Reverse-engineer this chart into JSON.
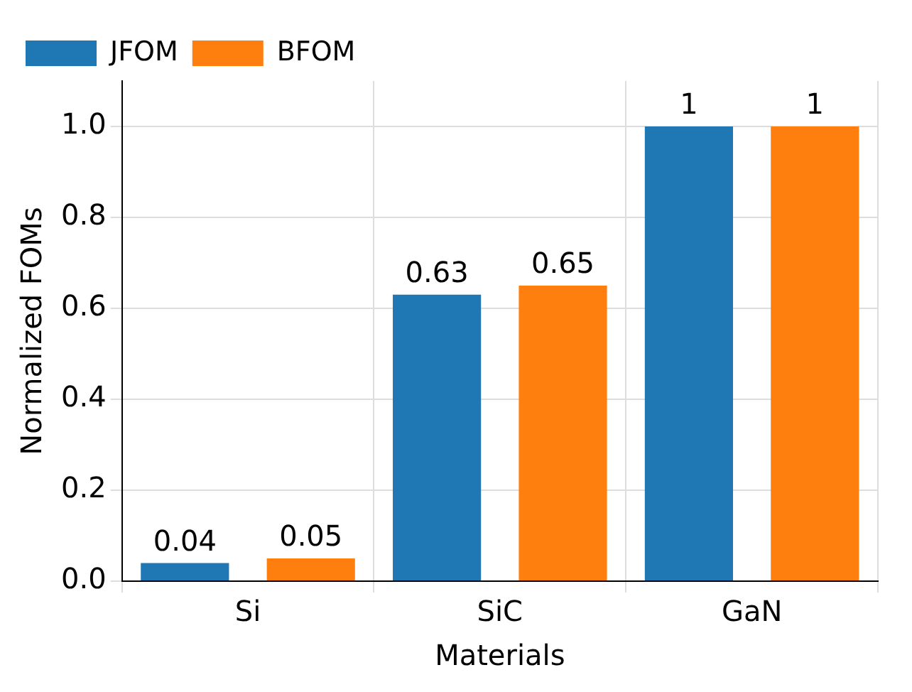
{
  "chart_data": {
    "type": "bar",
    "xlabel": "Materials",
    "ylabel": "Normalized FOMs",
    "categories": [
      "Si",
      "SiC",
      "GaN"
    ],
    "series": [
      {
        "name": "JFOM",
        "color": "#1f77b4",
        "values": [
          0.04,
          0.63,
          1
        ]
      },
      {
        "name": "BFOM",
        "color": "#ff7f0e",
        "values": [
          0.05,
          0.65,
          1
        ]
      }
    ],
    "ylim": [
      0,
      1.1
    ],
    "yticks": [
      {
        "value": 0,
        "label": "0.0"
      },
      {
        "value": 0.2,
        "label": "0.2"
      },
      {
        "value": 0.4,
        "label": "0.4"
      },
      {
        "value": 0.6,
        "label": "0.6"
      },
      {
        "value": 0.8,
        "label": "0.8"
      },
      {
        "value": 1,
        "label": "1.0"
      }
    ],
    "grid": true,
    "legend": "top left",
    "data_labels": true
  }
}
